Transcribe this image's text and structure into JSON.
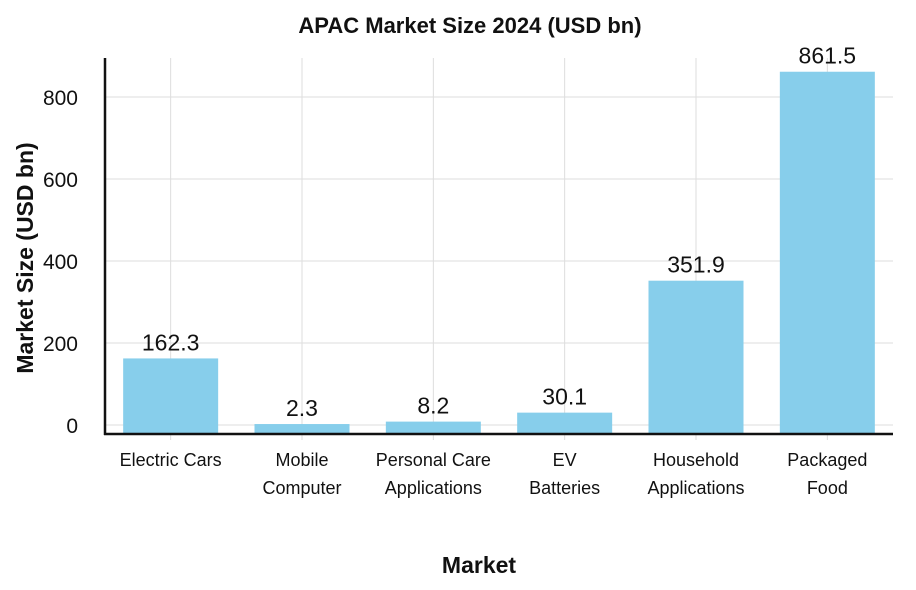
{
  "chart_data": {
    "type": "bar",
    "title": "APAC Market Size 2024 (USD bn)",
    "xlabel": "Market",
    "ylabel": "Market Size (USD bn)",
    "categories": [
      [
        "Electric Cars"
      ],
      [
        "Mobile",
        "Computer"
      ],
      [
        "Personal Care",
        "Applications"
      ],
      [
        "EV",
        "Batteries"
      ],
      [
        "Household",
        "Applications"
      ],
      [
        "Packaged",
        "Food"
      ]
    ],
    "values": [
      162.3,
      2.3,
      8.2,
      30.1,
      351.9,
      861.5
    ],
    "data_labels": [
      "162.3",
      "2.3",
      "8.2",
      "30.1",
      "351.9",
      "861.5"
    ],
    "yticks": [
      0,
      200,
      400,
      600,
      800
    ],
    "ylim": [
      -22,
      895
    ],
    "grid": true,
    "bar_color": "#87CEEB"
  }
}
